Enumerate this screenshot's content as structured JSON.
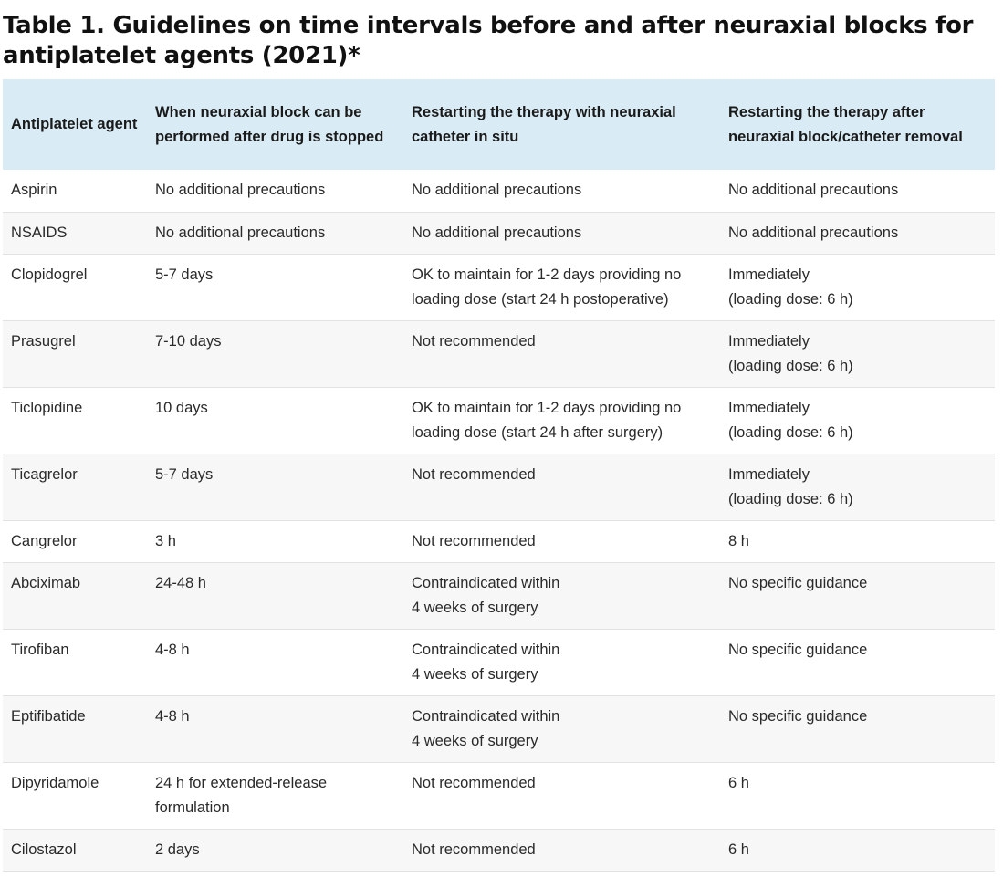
{
  "title": "Table 1. Guidelines on time intervals before and after neuraxial blocks for antiplatelet agents (2021)*",
  "table": {
    "headers": [
      "Antiplatelet agent",
      "When neuraxial block can be performed after drug is stopped",
      "Restarting the therapy with neuraxial catheter in situ",
      "Restarting the therapy after neuraxial block/catheter removal"
    ],
    "rows": [
      {
        "agent": "Aspirin",
        "block": "No additional precautions",
        "catheter": "No additional precautions",
        "restart_l1": "No additional precautions",
        "restart_l2": ""
      },
      {
        "agent": "NSAIDS",
        "block": "No additional precautions",
        "catheter": "No additional precautions",
        "restart_l1": "No additional precautions",
        "restart_l2": ""
      },
      {
        "agent": "Clopidogrel",
        "block": "5-7 days",
        "catheter": "OK to maintain for 1-2 days providing no loading dose (start 24 h postoperative)",
        "restart_l1": "Immediately",
        "restart_l2": "(loading dose: 6 h)"
      },
      {
        "agent": "Prasugrel",
        "block": "7-10 days",
        "catheter": "Not recommended",
        "restart_l1": "Immediately",
        "restart_l2": "(loading dose: 6 h)"
      },
      {
        "agent": "Ticlopidine",
        "block": "10 days",
        "catheter": "OK to maintain for 1-2 days providing no loading dose (start 24 h after surgery)",
        "restart_l1": "Immediately",
        "restart_l2": "(loading dose: 6 h)"
      },
      {
        "agent": "Ticagrelor",
        "block": "5-7 days",
        "catheter": "Not recommended",
        "restart_l1": "Immediately",
        "restart_l2": "(loading dose: 6 h)"
      },
      {
        "agent": "Cangrelor",
        "block": "3 h",
        "catheter": "Not recommended",
        "restart_l1": "8 h",
        "restart_l2": ""
      },
      {
        "agent": "Abciximab",
        "block": "24-48 h",
        "catheter_l1": "Contraindicated within",
        "catheter_l2": "4 weeks of surgery",
        "restart_l1": "No specific guidance",
        "restart_l2": ""
      },
      {
        "agent": "Tirofiban",
        "block": "4-8 h",
        "catheter_l1": "Contraindicated within",
        "catheter_l2": "4 weeks of surgery",
        "restart_l1": "No specific guidance",
        "restart_l2": ""
      },
      {
        "agent": "Eptifibatide",
        "block": "4-8 h",
        "catheter_l1": "Contraindicated within",
        "catheter_l2": "4 weeks of surgery",
        "restart_l1": "No specific guidance",
        "restart_l2": ""
      },
      {
        "agent": "Dipyridamole",
        "block": "24 h for extended-release formulation",
        "catheter": "Not recommended",
        "restart_l1": "6 h",
        "restart_l2": ""
      },
      {
        "agent": "Cilostazol",
        "block": "2 days",
        "catheter": "Not recommended",
        "restart_l1": "6 h",
        "restart_l2": ""
      }
    ]
  }
}
